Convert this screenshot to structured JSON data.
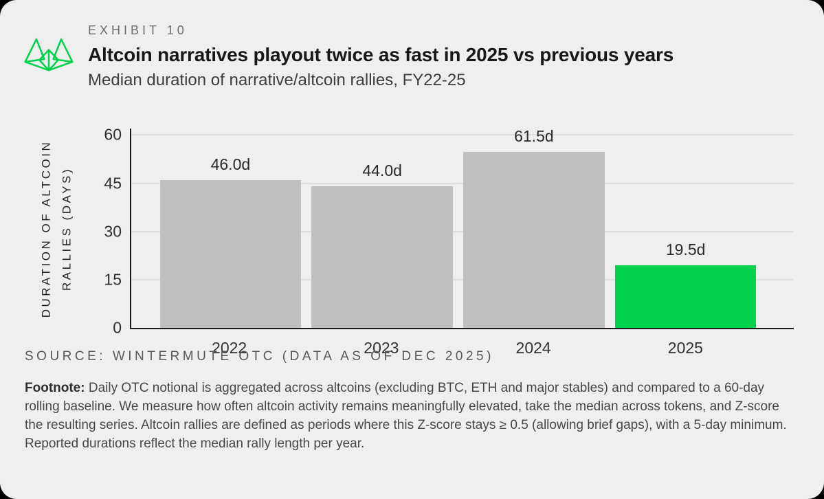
{
  "header": {
    "eyebrow": "EXHIBIT 10",
    "title": "Altcoin narratives playout twice as fast in 2025 vs previous years",
    "subtitle": "Median duration of narrative/altcoin rallies, FY22-25",
    "logo_icon": "wintermute-logo"
  },
  "chart_data": {
    "type": "bar",
    "categories": [
      "2022",
      "2023",
      "2024",
      "2025"
    ],
    "values": [
      46.0,
      44.0,
      61.5,
      19.5
    ],
    "value_labels": [
      "46.0d",
      "44.0d",
      "61.5d",
      "19.5d"
    ],
    "bar_colors": [
      "#bfc0bf",
      "#bfc0bf",
      "#bfc0bf",
      "#00d24d"
    ],
    "title": "Median duration of narrative/altcoin rallies, FY22-25",
    "xlabel": "",
    "ylabel": "DURATION OF ALTCOIN RALLIES (DAYS)",
    "ylabel_lines": [
      "DURATION OF ALTCOIN",
      "RALLIES (DAYS)"
    ],
    "yticks": [
      0,
      15,
      30,
      45,
      60
    ],
    "ylim": [
      0,
      62
    ],
    "grid": true,
    "legend_position": "none"
  },
  "source": {
    "text": "SOURCE: WINTERMUTE OTC (DATA AS OF DEC 2025)"
  },
  "footnote": {
    "label": "Footnote:",
    "text": " Daily OTC notional is aggregated across altcoins (excluding BTC, ETH and major stables) and compared to a 60-day rolling baseline. We measure how often altcoin activity remains meaningfully elevated, take the median across tokens, and Z-score the resulting series. Altcoin rallies are defined as periods where this Z-score stays ≥ 0.5 (allowing brief gaps), with a 5-day minimum. Reported durations reflect the median rally length per year."
  },
  "colors": {
    "page_bg": "#efefee",
    "outer_bg": "#000000",
    "accent_green": "#00d24d",
    "bar_gray": "#bfc0bf",
    "axis": "#1b1b1b",
    "gridline": "#dedede"
  }
}
